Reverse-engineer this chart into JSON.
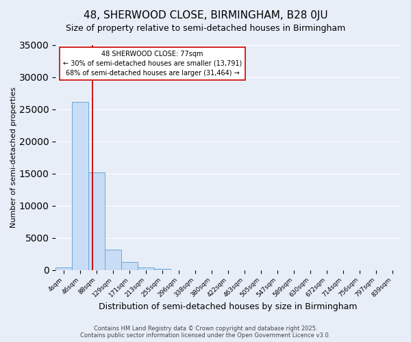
{
  "title": "48, SHERWOOD CLOSE, BIRMINGHAM, B28 0JU",
  "subtitle": "Size of property relative to semi-detached houses in Birmingham",
  "xlabel": "Distribution of semi-detached houses by size in Birmingham",
  "ylabel": "Number of semi-detached properties",
  "bar_labels": [
    "4sqm",
    "46sqm",
    "88sqm",
    "129sqm",
    "171sqm",
    "213sqm",
    "255sqm",
    "296sqm",
    "338sqm",
    "380sqm",
    "422sqm",
    "463sqm",
    "505sqm",
    "547sqm",
    "589sqm",
    "630sqm",
    "672sqm",
    "714sqm",
    "756sqm",
    "797sqm",
    "839sqm"
  ],
  "bar_values": [
    400,
    26100,
    15200,
    3100,
    1200,
    400,
    200,
    0,
    0,
    0,
    0,
    0,
    0,
    0,
    0,
    0,
    0,
    0,
    0,
    0,
    0
  ],
  "bar_color": "#c9dcf5",
  "bar_edge_color": "#6aaad4",
  "annotation_title": "48 SHERWOOD CLOSE: 77sqm",
  "annotation_line1": "← 30% of semi-detached houses are smaller (13,791)",
  "annotation_line2": "68% of semi-detached houses are larger (31,464) →",
  "vline_color": "#cc0000",
  "ylim": [
    0,
    35000
  ],
  "yticks": [
    0,
    5000,
    10000,
    15000,
    20000,
    25000,
    30000,
    35000
  ],
  "background_color": "#e8eef8",
  "grid_color": "#ffffff",
  "footer1": "Contains HM Land Registry data © Crown copyright and database right 2025.",
  "footer2": "Contains public sector information licensed under the Open Government Licence v3.0.",
  "title_fontsize": 11,
  "subtitle_fontsize": 9
}
